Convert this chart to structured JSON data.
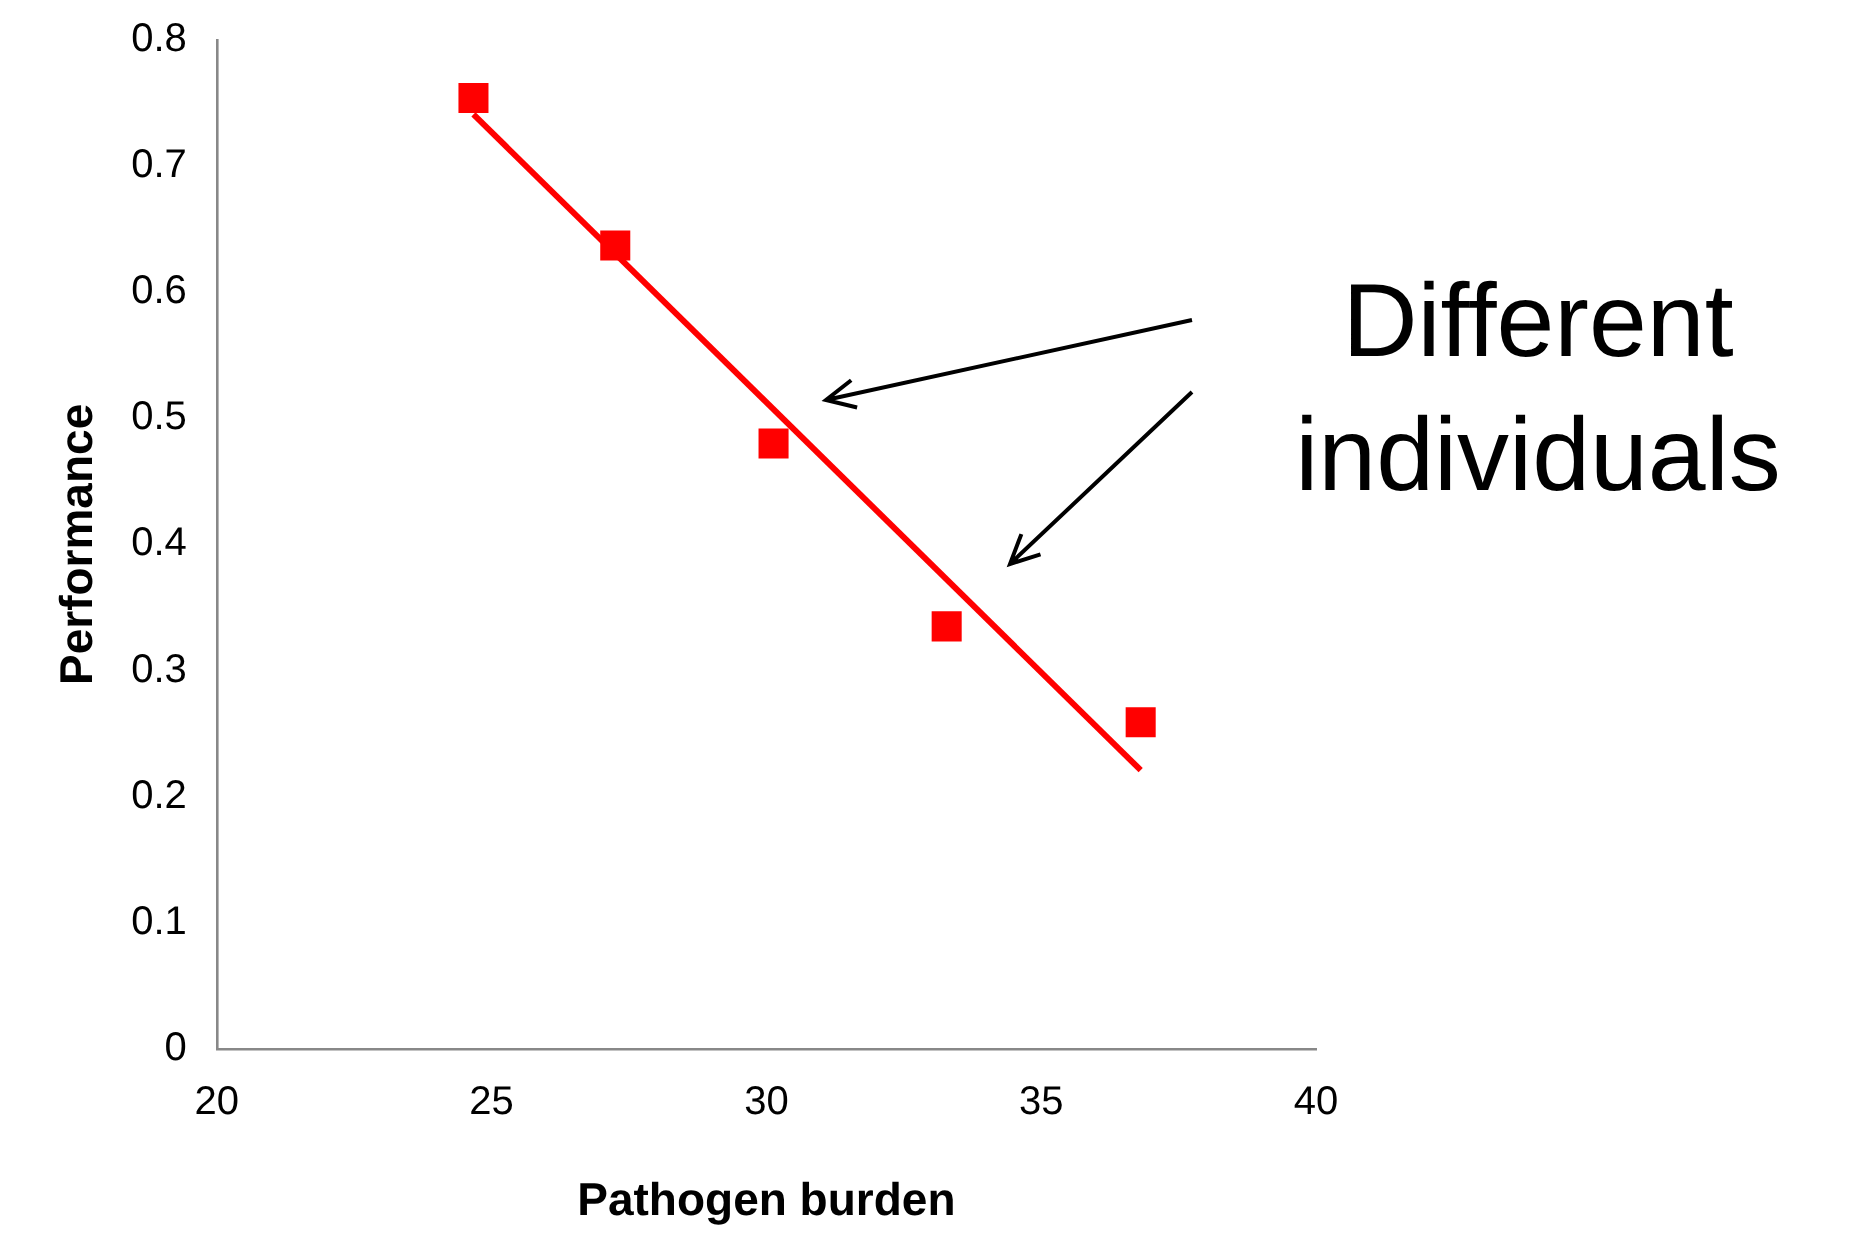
{
  "chart_data": {
    "type": "scatter",
    "xlabel": "Pathogen burden",
    "ylabel": "Performance",
    "xlim": [
      20,
      40
    ],
    "xticks": [
      20,
      25,
      30,
      35,
      40
    ],
    "ylim": [
      0,
      0.8
    ],
    "yticks": [
      0,
      0.1,
      0.2,
      0.3,
      0.4,
      0.5,
      0.6,
      0.7,
      0.8
    ],
    "marker": "square",
    "series": [
      {
        "type": "scatter",
        "color": "#ff0000",
        "x": [
          24.67,
          27.25,
          30.13,
          33.28,
          36.81
        ],
        "values": [
          0.754,
          0.637,
          0.48,
          0.335,
          0.259
        ]
      },
      {
        "type": "line",
        "color": "#ff0000",
        "marker": "none",
        "x": [
          24.67,
          36.81
        ],
        "values": [
          0.741,
          0.221
        ]
      }
    ],
    "annotations": [
      "Different individuals"
    ]
  }
}
